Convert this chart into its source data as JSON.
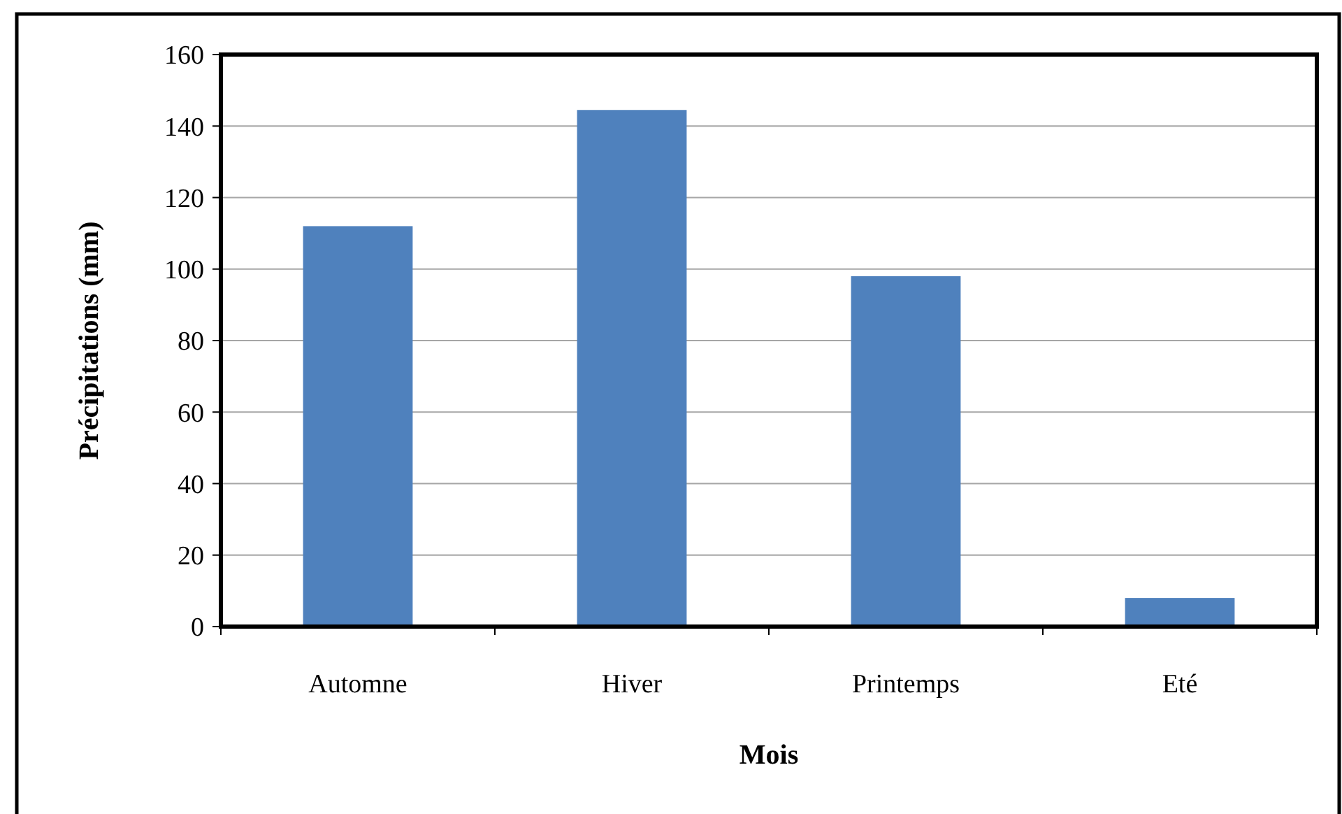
{
  "chart_data": {
    "type": "bar",
    "xlabel": "Mois",
    "ylabel": "Précipitations (mm)",
    "categories": [
      "Automne",
      "Hiver",
      "Printemps",
      "Eté"
    ],
    "values": [
      112,
      144.5,
      98,
      8
    ],
    "color": "#4f81bd",
    "ylim": [
      0,
      160
    ],
    "yticks": [
      0,
      20,
      40,
      60,
      80,
      100,
      120,
      140,
      160
    ],
    "grid": "y"
  }
}
